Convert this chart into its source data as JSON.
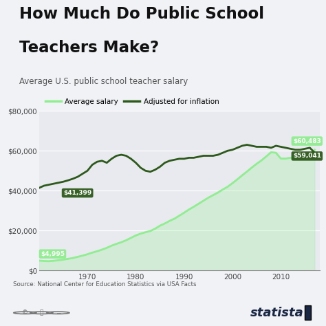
{
  "title_line1": "How Much Do Public School",
  "title_line2": "Teachers Make?",
  "subtitle": "Average U.S. public school teacher salary",
  "source": "Source: National Center for Education Statistics via USA Facts",
  "bg_color": "#f0f2f5",
  "plot_bg_color": "#e8eaf0",
  "light_green": "#90EE90",
  "dark_green": "#2d5a1b",
  "accent_bar_color": "#90EE90",
  "years_avg": [
    1960,
    1961,
    1962,
    1963,
    1964,
    1965,
    1966,
    1967,
    1968,
    1969,
    1970,
    1971,
    1972,
    1973,
    1974,
    1975,
    1976,
    1977,
    1978,
    1979,
    1980,
    1981,
    1982,
    1983,
    1984,
    1985,
    1986,
    1987,
    1988,
    1989,
    1990,
    1991,
    1992,
    1993,
    1994,
    1995,
    1996,
    1997,
    1998,
    1999,
    2000,
    2001,
    2002,
    2003,
    2004,
    2005,
    2006,
    2007,
    2008,
    2009,
    2010,
    2011,
    2012,
    2013,
    2014,
    2015,
    2016,
    2017
  ],
  "avg_salary": [
    4995,
    4800,
    4700,
    4900,
    5200,
    5500,
    5900,
    6300,
    6900,
    7500,
    8200,
    9000,
    9700,
    10500,
    11400,
    12500,
    13400,
    14200,
    15200,
    16400,
    17600,
    18500,
    19200,
    19800,
    21000,
    22500,
    23600,
    24900,
    26000,
    27500,
    29000,
    30600,
    32000,
    33500,
    35000,
    36500,
    37800,
    39100,
    40600,
    42000,
    43800,
    45700,
    47700,
    49600,
    51600,
    53500,
    55200,
    57200,
    59300,
    59000,
    56100,
    56100,
    56500,
    56800,
    57200,
    57500,
    58000,
    60483
  ],
  "years_adj": [
    1960,
    1961,
    1962,
    1963,
    1964,
    1965,
    1966,
    1967,
    1968,
    1969,
    1970,
    1971,
    1972,
    1973,
    1974,
    1975,
    1976,
    1977,
    1978,
    1979,
    1980,
    1981,
    1982,
    1983,
    1984,
    1985,
    1986,
    1987,
    1988,
    1989,
    1990,
    1991,
    1992,
    1993,
    1994,
    1995,
    1996,
    1997,
    1998,
    1999,
    2000,
    2001,
    2002,
    2003,
    2004,
    2005,
    2006,
    2007,
    2008,
    2009,
    2010,
    2011,
    2012,
    2013,
    2014,
    2015,
    2016,
    2017
  ],
  "adj_salary": [
    41399,
    42500,
    43000,
    43500,
    44000,
    44500,
    45200,
    46000,
    47000,
    48500,
    50000,
    53000,
    54500,
    55000,
    54000,
    56000,
    57500,
    58000,
    57500,
    56000,
    54000,
    51500,
    50000,
    49500,
    50500,
    52000,
    54000,
    55000,
    55500,
    56000,
    56000,
    56500,
    56500,
    57000,
    57500,
    57500,
    57500,
    58000,
    59000,
    60000,
    60500,
    61500,
    62500,
    63000,
    62500,
    62000,
    62000,
    62000,
    61500,
    62500,
    62000,
    61500,
    61000,
    60500,
    60500,
    61000,
    61500,
    59041
  ],
  "ylim": [
    0,
    80000
  ],
  "yticks": [
    0,
    20000,
    40000,
    60000,
    80000
  ],
  "xlim": [
    1960,
    2018
  ],
  "xticks": [
    1970,
    1980,
    1990,
    2000,
    2010
  ],
  "label_start_avg": "$4,995",
  "label_start_adj": "$41,399",
  "label_end_avg": "$60,483",
  "label_end_adj": "$59,041"
}
